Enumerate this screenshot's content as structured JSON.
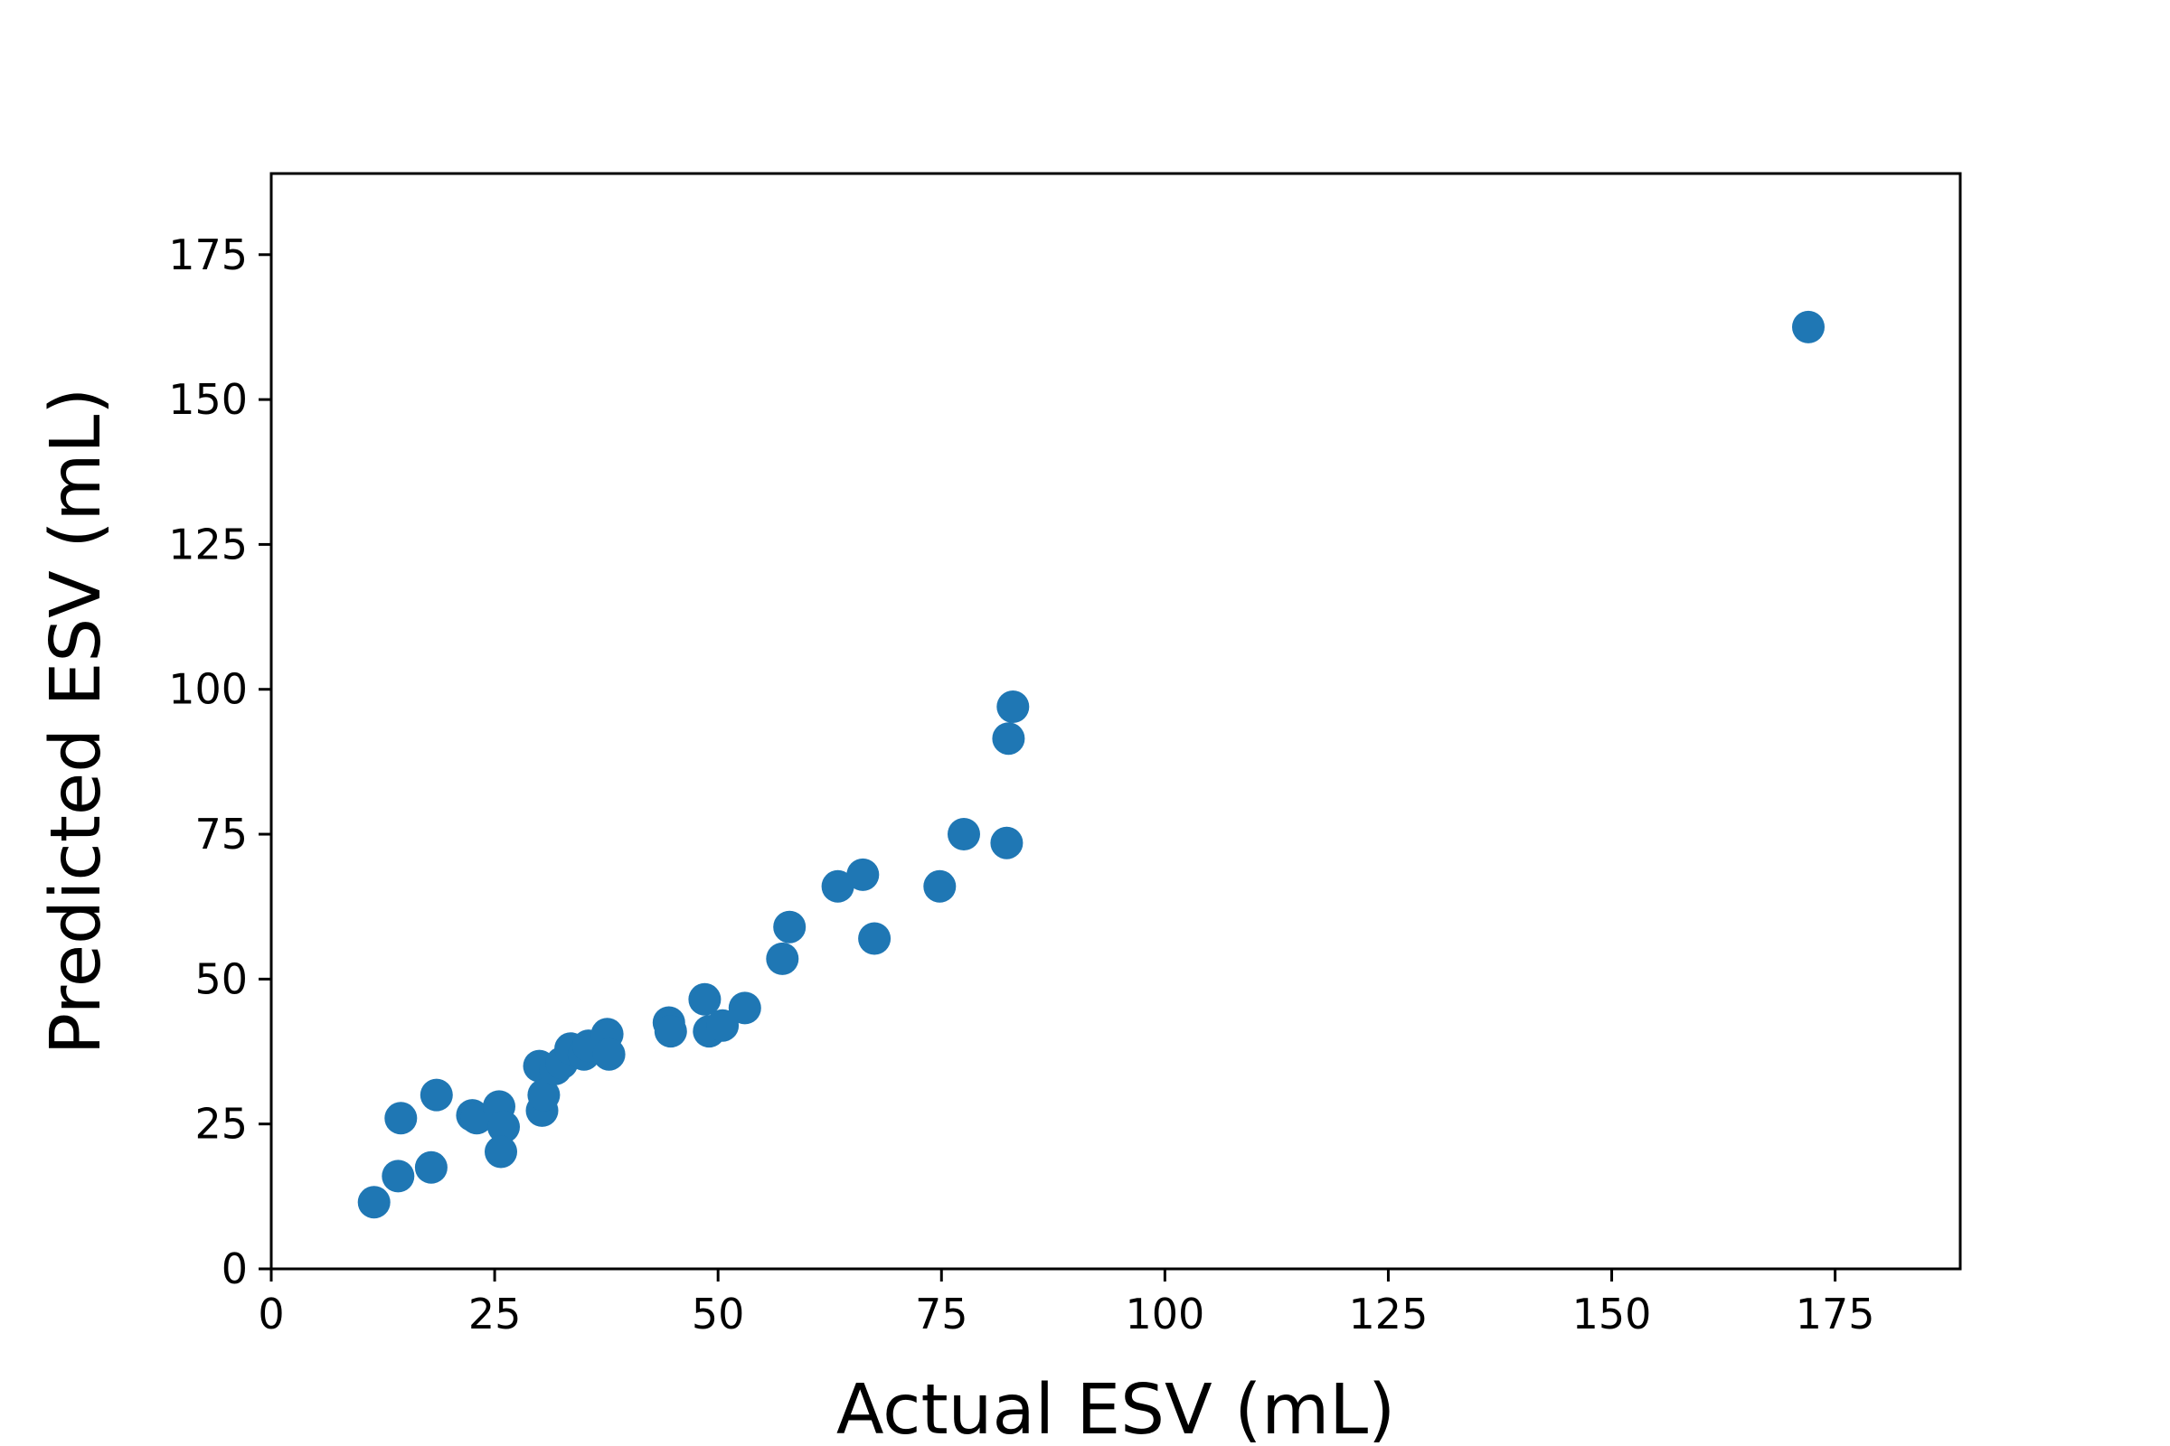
{
  "chart_data": {
    "type": "scatter",
    "title": "",
    "xlabel": "Actual ESV (mL)",
    "ylabel": "Predicted ESV (mL)",
    "xlim": [
      0,
      189
    ],
    "ylim": [
      0,
      189
    ],
    "x_ticks": [
      0,
      25,
      50,
      75,
      100,
      125,
      150,
      175
    ],
    "y_ticks": [
      0,
      25,
      50,
      75,
      100,
      125,
      150,
      175
    ],
    "grid": false,
    "marker_color": "#1f77b4",
    "series": [
      {
        "points": [
          [
            11.5,
            11.5
          ],
          [
            14.2,
            16.0
          ],
          [
            14.5,
            26.0
          ],
          [
            17.9,
            17.5
          ],
          [
            18.5,
            30.0
          ],
          [
            22.5,
            26.5
          ],
          [
            23.0,
            26.0
          ],
          [
            25.5,
            28.0
          ],
          [
            26.0,
            24.5
          ],
          [
            25.7,
            20.2
          ],
          [
            30.0,
            35.0
          ],
          [
            30.3,
            27.3
          ],
          [
            30.5,
            30.0
          ],
          [
            31.8,
            34.5
          ],
          [
            32.5,
            35.5
          ],
          [
            33.5,
            38.0
          ],
          [
            35.0,
            37.0
          ],
          [
            35.5,
            38.5
          ],
          [
            37.6,
            40.5
          ],
          [
            37.8,
            37.0
          ],
          [
            44.5,
            42.5
          ],
          [
            44.7,
            41.0
          ],
          [
            48.5,
            46.5
          ],
          [
            49.0,
            41.0
          ],
          [
            50.5,
            42.0
          ],
          [
            53.0,
            45.0
          ],
          [
            57.2,
            53.5
          ],
          [
            58.0,
            59.0
          ],
          [
            63.4,
            66.0
          ],
          [
            66.2,
            68.0
          ],
          [
            67.5,
            57.0
          ],
          [
            74.8,
            66.0
          ],
          [
            77.5,
            75.0
          ],
          [
            82.3,
            73.5
          ],
          [
            82.5,
            91.5
          ],
          [
            83.0,
            97.0
          ],
          [
            172.0,
            162.5
          ]
        ]
      }
    ]
  }
}
